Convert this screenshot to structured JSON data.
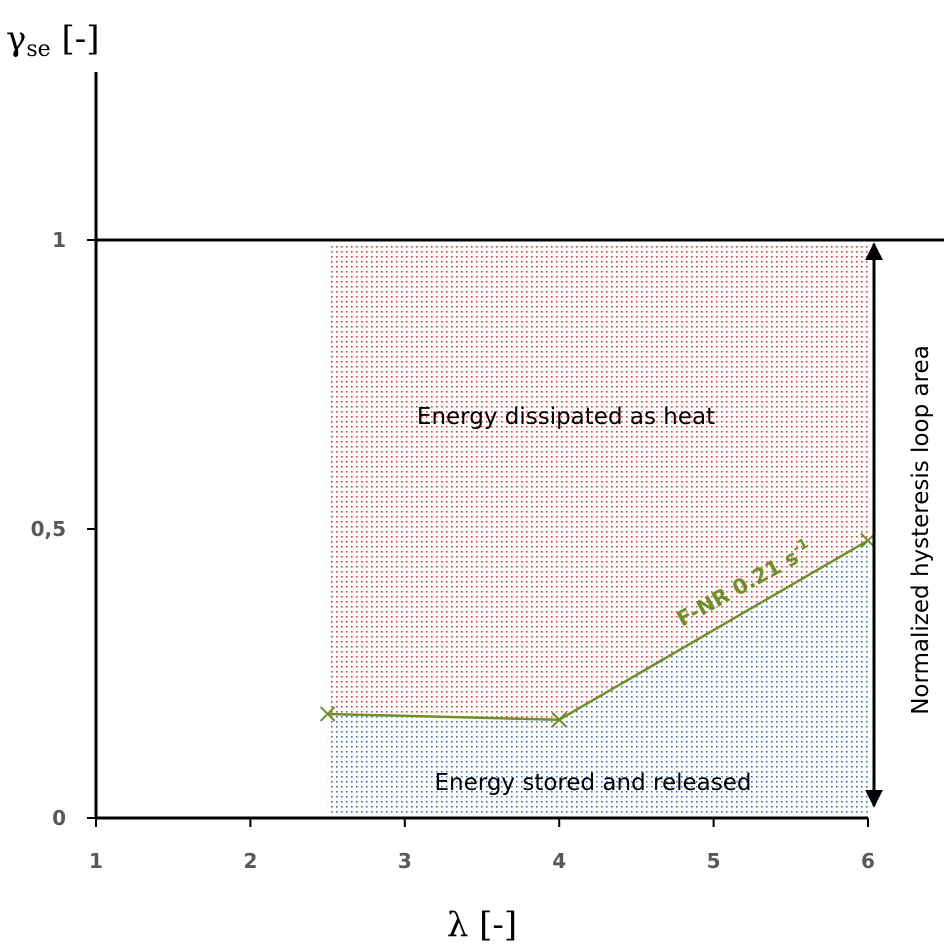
{
  "chart_data": {
    "type": "line",
    "title": "",
    "ylabel": "γ",
    "ylabel_sub": "se",
    "ylabel_unit": " [-]",
    "xlabel": "λ [-]",
    "xlim": [
      1,
      6
    ],
    "ylim": [
      0,
      1.2
    ],
    "x_ticks": [
      1,
      2,
      3,
      4,
      5,
      6
    ],
    "y_ticks": [
      {
        "value": 0,
        "label": "0"
      },
      {
        "value": 0.5,
        "label": "0,5"
      },
      {
        "value": 1,
        "label": "1"
      }
    ],
    "grid": false,
    "reference_line": {
      "y": 1
    },
    "series": [
      {
        "name": "F-NR 0.21 s",
        "name_sup": "-1",
        "color": "#6e8f2a",
        "marker": "x",
        "x": [
          2.5,
          4,
          6
        ],
        "y": [
          0.18,
          0.17,
          0.48
        ]
      }
    ],
    "regions": [
      {
        "label": "Energy dissipated as heat",
        "color": "#e03a3a"
      },
      {
        "label": "Energy stored and released",
        "color": "#3a6fb4"
      }
    ],
    "range_annotation": {
      "label": "Normalized hysteresis loop area",
      "x": 6,
      "y": [
        0,
        1
      ]
    }
  }
}
